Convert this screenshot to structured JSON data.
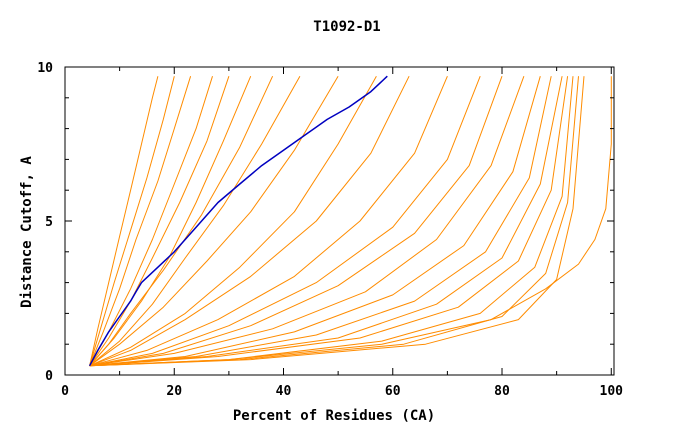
{
  "chart_data": {
    "type": "line",
    "title": "T1092-D1",
    "xlabel": "Percent of Residues (CA)",
    "ylabel": "Distance Cutoff, A",
    "xlim": [
      0,
      100
    ],
    "ylim": [
      0,
      10
    ],
    "x_ticks": [
      "0",
      "20",
      "40",
      "60",
      "80",
      "100"
    ],
    "y_ticks": [
      "0",
      "5",
      "10"
    ],
    "grid": false,
    "legend": "none",
    "colors": {
      "highlight": "#0000c0",
      "others": "#ff8c00"
    },
    "highlight_series": {
      "x": [
        4.5,
        6,
        8,
        10,
        12,
        13,
        14,
        17,
        20,
        24,
        28,
        32,
        36,
        40,
        44,
        48,
        52,
        56,
        59
      ],
      "y": [
        0.3,
        0.8,
        1.4,
        1.9,
        2.4,
        2.7,
        3.0,
        3.5,
        4.0,
        4.8,
        5.6,
        6.2,
        6.8,
        7.3,
        7.8,
        8.3,
        8.7,
        9.2,
        9.7
      ]
    },
    "series": [
      {
        "x": [
          4.5,
          6,
          8,
          10,
          12,
          14,
          16,
          17
        ],
        "y": [
          0.3,
          1.5,
          3,
          4.5,
          6,
          7.5,
          9,
          9.7
        ]
      },
      {
        "x": [
          4.5,
          6.5,
          9,
          12,
          15,
          18,
          20
        ],
        "y": [
          0.3,
          1.5,
          3,
          4.7,
          6.4,
          8.3,
          9.7
        ]
      },
      {
        "x": [
          4.5,
          7,
          10,
          13,
          17,
          20,
          23
        ],
        "y": [
          0.3,
          1.4,
          2.8,
          4.4,
          6.3,
          8,
          9.7
        ]
      },
      {
        "x": [
          4.5,
          8,
          12,
          16,
          20,
          24,
          27
        ],
        "y": [
          0.3,
          1.4,
          2.8,
          4.4,
          6.2,
          8,
          9.7
        ]
      },
      {
        "x": [
          4.5,
          8,
          12,
          16,
          21,
          26,
          30
        ],
        "y": [
          0.3,
          1.2,
          2.4,
          3.8,
          5.6,
          7.6,
          9.7
        ]
      },
      {
        "x": [
          4.5,
          9,
          14,
          19,
          24,
          29,
          34
        ],
        "y": [
          0.3,
          1.2,
          2.4,
          3.8,
          5.6,
          7.6,
          9.7
        ]
      },
      {
        "x": [
          4.5,
          8,
          12,
          18,
          25,
          32,
          38
        ],
        "y": [
          0.3,
          1.0,
          2.0,
          3.4,
          5.2,
          7.4,
          9.7
        ]
      },
      {
        "x": [
          4.5,
          10,
          16,
          22,
          29,
          36,
          43
        ],
        "y": [
          0.3,
          1.1,
          2.3,
          3.8,
          5.5,
          7.5,
          9.7
        ]
      },
      {
        "x": [
          4.5,
          10,
          18,
          26,
          34,
          42,
          50
        ],
        "y": [
          0.3,
          1.0,
          2.2,
          3.7,
          5.3,
          7.3,
          9.7
        ]
      },
      {
        "x": [
          4.5,
          12,
          22,
          32,
          42,
          50,
          57
        ],
        "y": [
          0.3,
          0.9,
          2.0,
          3.5,
          5.3,
          7.5,
          9.7
        ]
      },
      {
        "x": [
          4.5,
          12,
          22,
          34,
          46,
          56,
          63
        ],
        "y": [
          0.3,
          0.8,
          1.8,
          3.2,
          5.0,
          7.2,
          9.7
        ]
      },
      {
        "x": [
          4.5,
          15,
          28,
          42,
          54,
          64,
          70
        ],
        "y": [
          0.3,
          0.8,
          1.8,
          3.2,
          5.0,
          7.2,
          9.7
        ]
      },
      {
        "x": [
          4.5,
          16,
          30,
          46,
          60,
          70,
          76
        ],
        "y": [
          0.3,
          0.7,
          1.6,
          3.0,
          4.8,
          7.0,
          9.7
        ]
      },
      {
        "x": [
          4.5,
          18,
          34,
          50,
          64,
          74,
          80
        ],
        "y": [
          0.3,
          0.7,
          1.6,
          2.9,
          4.6,
          6.8,
          9.7
        ]
      },
      {
        "x": [
          4.5,
          20,
          38,
          55,
          68,
          78,
          84
        ],
        "y": [
          0.3,
          0.7,
          1.5,
          2.7,
          4.4,
          6.8,
          9.7
        ]
      },
      {
        "x": [
          4.5,
          22,
          42,
          60,
          73,
          82,
          87
        ],
        "y": [
          0.3,
          0.6,
          1.4,
          2.6,
          4.2,
          6.6,
          9.7
        ]
      },
      {
        "x": [
          4.5,
          24,
          46,
          64,
          77,
          85,
          89
        ],
        "y": [
          0.3,
          0.6,
          1.3,
          2.4,
          4.0,
          6.4,
          9.7
        ]
      },
      {
        "x": [
          4.5,
          26,
          50,
          68,
          80,
          87,
          91
        ],
        "y": [
          0.3,
          0.6,
          1.2,
          2.3,
          3.8,
          6.2,
          9.7
        ]
      },
      {
        "x": [
          4.5,
          28,
          54,
          72,
          83,
          89,
          92
        ],
        "y": [
          0.3,
          0.6,
          1.2,
          2.2,
          3.7,
          6.0,
          9.7
        ]
      },
      {
        "x": [
          4.5,
          30,
          58,
          76,
          86,
          91,
          93
        ],
        "y": [
          0.3,
          0.5,
          1.1,
          2.0,
          3.5,
          5.8,
          9.7
        ]
      },
      {
        "x": [
          4.5,
          32,
          62,
          80,
          88,
          92,
          94
        ],
        "y": [
          0.3,
          0.5,
          1.0,
          1.9,
          3.3,
          5.6,
          9.7
        ]
      },
      {
        "x": [
          4.5,
          34,
          66,
          83,
          90,
          93,
          95
        ],
        "y": [
          0.3,
          0.5,
          1.0,
          1.8,
          3.1,
          5.4,
          9.7
        ]
      },
      {
        "x": [
          4.5,
          30,
          58,
          78,
          88,
          94,
          97,
          99,
          100,
          100
        ],
        "y": [
          0.3,
          0.5,
          1.0,
          1.8,
          2.8,
          3.6,
          4.4,
          5.4,
          7.5,
          9.7
        ]
      }
    ]
  }
}
